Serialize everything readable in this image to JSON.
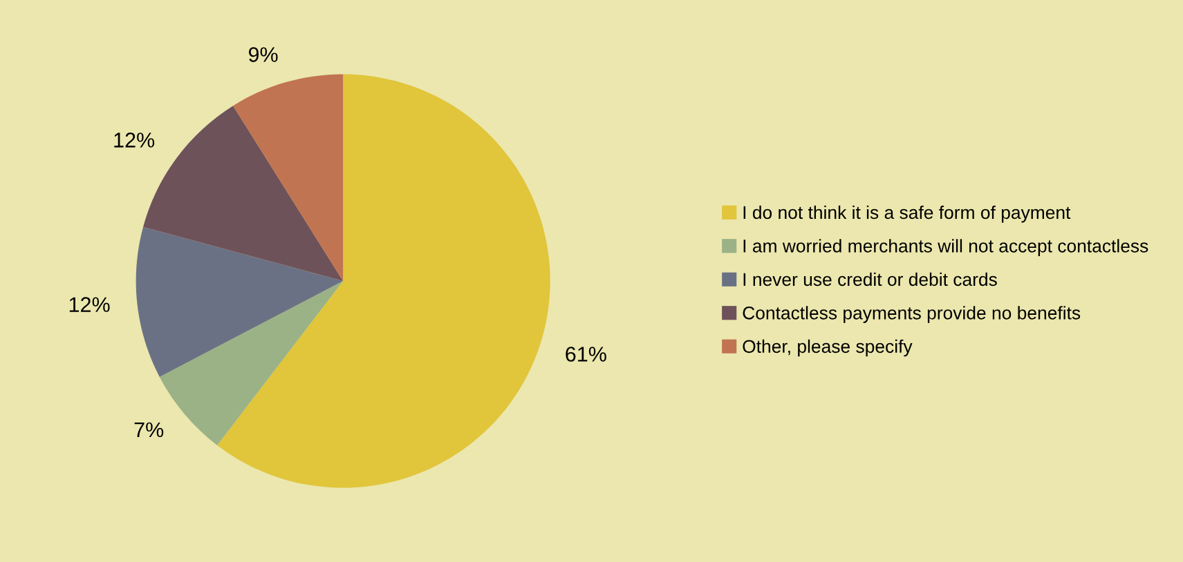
{
  "chart_data": {
    "type": "pie",
    "categories": [
      "I do not think it is a safe form of payment",
      "I am worried merchants will not accept contactless",
      "I never use credit or debit cards",
      "Contactless payments provide no benefits",
      "Other, please specify"
    ],
    "values": [
      61,
      7,
      12,
      12,
      9
    ],
    "colors": [
      "#e1c53b",
      "#9bb287",
      "#6b7184",
      "#6e525a",
      "#c17451"
    ],
    "value_labels": [
      "61%",
      "7%",
      "12%",
      "12%",
      "9%"
    ],
    "legend": "right"
  }
}
